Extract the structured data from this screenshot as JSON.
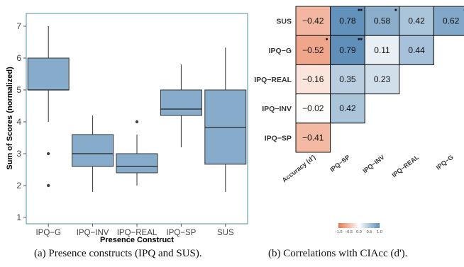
{
  "colors": {
    "box_fill": "#87ABCB",
    "panel_border": "#4A90A6",
    "neg_strong": "#E8764C",
    "pos_strong": "#5E8FB9"
  },
  "captions": {
    "a": "(a) Presence constructs (IPQ and SUS).",
    "b": "(b) Correlations with CIAcc (d')."
  },
  "chart_data": [
    {
      "type": "box",
      "ylabel": "Sum of Scores (normalized)",
      "xlabel": "Presence Construct",
      "ylim": [
        0.8,
        7.4
      ],
      "yticks": [
        1,
        2,
        3,
        4,
        5,
        6,
        7
      ],
      "grid": false,
      "categories": [
        "IPQ−G",
        "IPQ−INV",
        "IPQ−REAL",
        "IPQ−SP",
        "SUS"
      ],
      "boxes": [
        {
          "name": "IPQ−G",
          "whisker_low": 4.0,
          "q1": 5.0,
          "median": 5.0,
          "q3": 6.0,
          "whisker_high": 7.0,
          "outliers": [
            3.0,
            2.0
          ]
        },
        {
          "name": "IPQ−INV",
          "whisker_low": 1.8,
          "q1": 2.6,
          "median": 3.0,
          "q3": 3.6,
          "whisker_high": 4.2,
          "outliers": []
        },
        {
          "name": "IPQ−REAL",
          "whisker_low": 2.0,
          "q1": 2.4,
          "median": 2.6,
          "q3": 3.0,
          "whisker_high": 3.6,
          "outliers": [
            4.0
          ]
        },
        {
          "name": "IPQ−SP",
          "whisker_low": 3.2,
          "q1": 4.2,
          "median": 4.4,
          "q3": 5.0,
          "whisker_high": 5.8,
          "outliers": []
        },
        {
          "name": "SUS",
          "whisker_low": 1.8,
          "q1": 2.67,
          "median": 3.83,
          "q3": 5.0,
          "whisker_high": 6.33,
          "outliers": []
        }
      ]
    },
    {
      "type": "heatmap",
      "rows": [
        "SUS",
        "IPQ−G",
        "IPQ−REAL",
        "IPQ−INV",
        "IPQ−SP"
      ],
      "columns": [
        "Accuracy (d')",
        "IPQ−SP",
        "IPQ−INV",
        "IPQ−REAL",
        "IPQ−G"
      ],
      "cells": [
        [
          {
            "v": -0.42,
            "label": "−0.42",
            "sig": 0
          },
          {
            "v": 0.78,
            "label": "0.78",
            "sig": 2
          },
          {
            "v": 0.58,
            "label": "0.58",
            "sig": 1
          },
          {
            "v": 0.42,
            "label": "0.42",
            "sig": 0
          },
          {
            "v": 0.62,
            "label": "0.62",
            "sig": 1
          }
        ],
        [
          {
            "v": -0.52,
            "label": "−0.52",
            "sig": 1
          },
          {
            "v": 0.79,
            "label": "0.79",
            "sig": 2
          },
          {
            "v": 0.11,
            "label": "0.11",
            "sig": 0
          },
          {
            "v": 0.44,
            "label": "0.44",
            "sig": 0
          },
          null
        ],
        [
          {
            "v": -0.16,
            "label": "−0.16",
            "sig": 0
          },
          {
            "v": 0.35,
            "label": "0.35",
            "sig": 0
          },
          {
            "v": 0.23,
            "label": "0.23",
            "sig": 0
          },
          null,
          null
        ],
        [
          {
            "v": -0.02,
            "label": "−0.02",
            "sig": 0
          },
          {
            "v": 0.42,
            "label": "0.42",
            "sig": 0
          },
          null,
          null,
          null
        ],
        [
          {
            "v": -0.41,
            "label": "−0.41",
            "sig": 0
          },
          null,
          null,
          null,
          null
        ]
      ],
      "legend": {
        "position": "bottom",
        "range": [
          -1.0,
          1.0
        ],
        "tick_labels": [
          "−1.0",
          "−0.5",
          "0.0",
          "0.5",
          "1.0"
        ]
      }
    }
  ]
}
